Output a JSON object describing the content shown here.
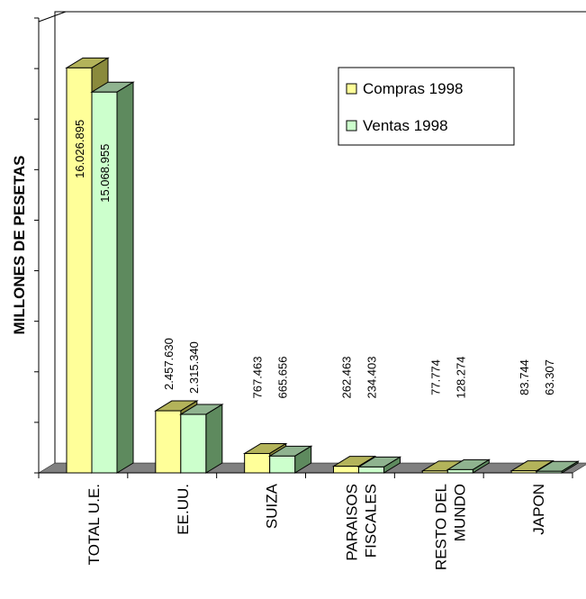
{
  "chart_data": {
    "type": "bar",
    "three_d": true,
    "ylabel": "MILLONES DE PESETAS",
    "xlabel": "",
    "categories": [
      "TOTAL U.E.",
      "EE.UU.",
      "SUIZA",
      "PARAISOS FISCALES",
      "RESTO DEL MUNDO",
      "JAPON"
    ],
    "category_lines": [
      [
        "TOTAL U.E."
      ],
      [
        "EE.UU."
      ],
      [
        "SUIZA"
      ],
      [
        "PARAISOS",
        "FISCALES"
      ],
      [
        "RESTO DEL",
        "MUNDO"
      ],
      [
        "JAPON"
      ]
    ],
    "series": [
      {
        "name": "Compras 1998",
        "values": [
          16026895,
          2457630,
          767463,
          262463,
          77774,
          83744
        ],
        "labels": [
          "16.026.895",
          "2.457.630",
          "767.463",
          "262.463",
          "77.774",
          "83.744"
        ],
        "color": "#ffff99",
        "side_color": "#8a8a3c",
        "top_color": "#b3b35a"
      },
      {
        "name": "Ventas 1998",
        "values": [
          15068955,
          2315340,
          665656,
          234403,
          128274,
          63307
        ],
        "labels": [
          "15.068.955",
          "2.315.340",
          "665.656",
          "234.403",
          "128.274",
          "63.307"
        ],
        "color": "#ccffcc",
        "side_color": "#5e8a5e",
        "top_color": "#8fb38f"
      }
    ],
    "ylim": [
      0,
      18000000
    ],
    "y_tick_labels_shown": false,
    "grid": false,
    "legend_position": "top-right",
    "floor_color": "#808080"
  }
}
